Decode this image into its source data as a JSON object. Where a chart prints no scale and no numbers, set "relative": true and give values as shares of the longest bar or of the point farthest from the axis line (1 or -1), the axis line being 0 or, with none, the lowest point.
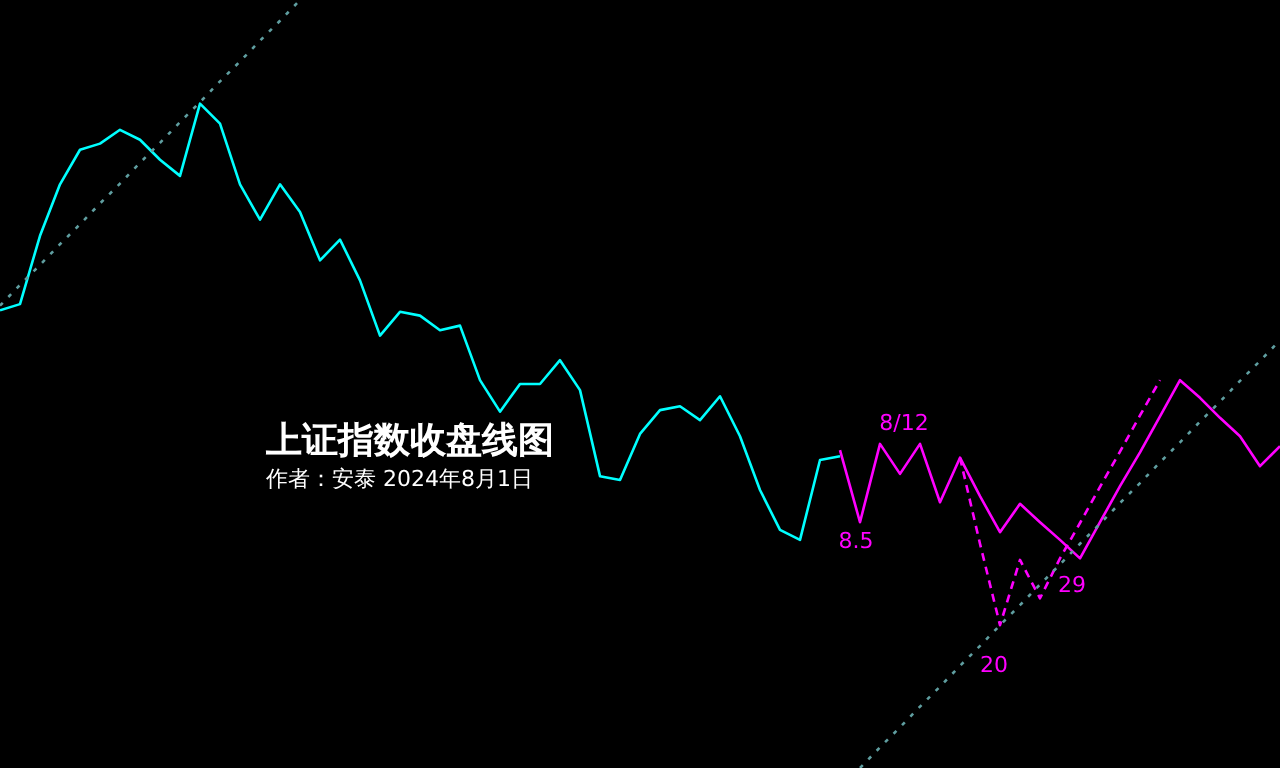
{
  "chart_data": {
    "type": "line",
    "title": "上证指数收盘线图",
    "subtitle": "作者：安泰 2024年8月1日",
    "relative": true,
    "categories": [
      null,
      null,
      null,
      null,
      null,
      null,
      null,
      null,
      null,
      null,
      null,
      null,
      null,
      null,
      null,
      null,
      null,
      null,
      null,
      null,
      null,
      null,
      null,
      null,
      null,
      null,
      null,
      null,
      null,
      null,
      null,
      null,
      null,
      null,
      null,
      null,
      null,
      null,
      null,
      null,
      null,
      null,
      null,
      null,
      null,
      null,
      null,
      null,
      null,
      null,
      null,
      null,
      null,
      null,
      null,
      null,
      null,
      null,
      null,
      null,
      null,
      null,
      null,
      null,
      null
    ],
    "series": [
      {
        "color": "#00ffff",
        "values": [
          0.596,
          0.604,
          0.693,
          0.76,
          0.805,
          0.813,
          0.831,
          0.818,
          0.792,
          0.771,
          0.865,
          0.839,
          0.76,
          0.714,
          0.76,
          0.724,
          0.661,
          0.688,
          0.635,
          0.563,
          0.594,
          0.589,
          0.57,
          0.576,
          0.505,
          0.464,
          0.5,
          0.5,
          0.531,
          0.492,
          0.38,
          0.375,
          0.435,
          0.466,
          0.471,
          0.453,
          0.484,
          0.432,
          0.362,
          0.31,
          0.297,
          0.401,
          0.406,
          null,
          null,
          null,
          null,
          null,
          null,
          null,
          null,
          null,
          null,
          null,
          null,
          null,
          null,
          null,
          null,
          null,
          null,
          null,
          null,
          null,
          null
        ]
      },
      {
        "color": "#ff00ff",
        "values": [
          null,
          null,
          null,
          null,
          null,
          null,
          null,
          null,
          null,
          null,
          null,
          null,
          null,
          null,
          null,
          null,
          null,
          null,
          null,
          null,
          null,
          null,
          null,
          null,
          null,
          null,
          null,
          null,
          null,
          null,
          null,
          null,
          null,
          null,
          null,
          null,
          null,
          null,
          null,
          null,
          null,
          null,
          0.414,
          0.32,
          0.422,
          0.383,
          0.422,
          0.346,
          0.404,
          0.354,
          0.307,
          0.344,
          0.32,
          0.297,
          0.273,
          0.32,
          0.367,
          0.411,
          0.458,
          0.505,
          0.482,
          0.456,
          0.432,
          0.393,
          0.419
        ]
      },
      {
        "color": "#ff00ff",
        "line_style": "dashed",
        "values": [
          null,
          null,
          null,
          null,
          null,
          null,
          null,
          null,
          null,
          null,
          null,
          null,
          null,
          null,
          null,
          null,
          null,
          null,
          null,
          null,
          null,
          null,
          null,
          null,
          null,
          null,
          null,
          null,
          null,
          null,
          null,
          null,
          null,
          null,
          null,
          null,
          null,
          null,
          null,
          null,
          null,
          null,
          null,
          null,
          null,
          null,
          null,
          null,
          0.404,
          0.292,
          0.186,
          0.271,
          0.221,
          0.273,
          0.319,
          0.366,
          0.412,
          0.459,
          0.505,
          null,
          null,
          null,
          null,
          null,
          null
        ]
      },
      {
        "color": "#5f9ea0",
        "line_style": "dotted",
        "values": [
          0.602,
          0.629,
          0.655,
          0.682,
          0.708,
          0.735,
          0.761,
          0.788,
          0.814,
          0.841,
          0.867,
          0.894,
          0.92,
          0.947,
          0.973,
          1,
          null,
          null,
          null,
          null,
          null,
          null,
          null,
          null,
          null,
          null,
          null,
          null,
          null,
          null,
          null,
          null,
          null,
          null,
          null,
          null,
          null,
          null,
          null,
          null,
          null,
          null,
          null,
          null,
          null,
          null,
          null,
          null,
          null,
          null,
          null,
          null,
          null,
          null,
          null,
          null,
          null,
          null,
          null,
          null,
          null,
          null,
          null,
          null,
          null
        ]
      },
      {
        "color": "#5f9ea0",
        "line_style": "dotted",
        "values": [
          null,
          null,
          null,
          null,
          null,
          null,
          null,
          null,
          null,
          null,
          null,
          null,
          null,
          null,
          null,
          null,
          null,
          null,
          null,
          null,
          null,
          null,
          null,
          null,
          null,
          null,
          null,
          null,
          null,
          null,
          null,
          null,
          null,
          null,
          null,
          null,
          null,
          null,
          null,
          null,
          null,
          null,
          null,
          0,
          0.027,
          0.053,
          0.08,
          0.106,
          0.133,
          0.159,
          0.186,
          0.212,
          0.239,
          0.265,
          0.292,
          0.318,
          0.345,
          0.371,
          0.398,
          0.424,
          0.451,
          0.477,
          0.504,
          0.53,
          0.557
        ]
      }
    ],
    "annotations": [
      "8.5",
      "8/12",
      "20",
      "29"
    ]
  }
}
